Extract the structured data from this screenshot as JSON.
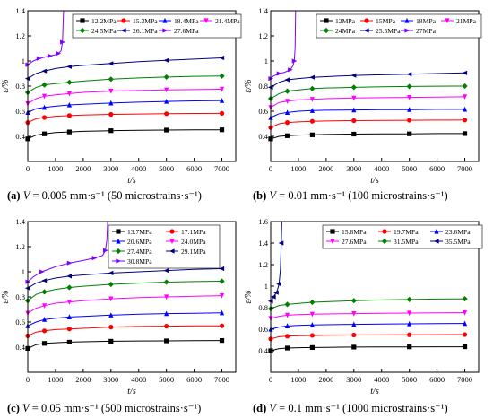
{
  "chart_data": [
    {
      "type": "line",
      "panel_label": "(a)",
      "caption": {
        "label": "(a)",
        "v": "V",
        "rest": " = 0.005 mm·s⁻¹ (50 microstrains·s⁻¹)"
      },
      "xlabel": "t/s",
      "ylabel": "ε/%",
      "xlim": [
        0,
        7500
      ],
      "ylim": [
        0.2,
        1.4
      ],
      "xticks": [
        0,
        1000,
        2000,
        3000,
        4000,
        5000,
        6000,
        7000
      ],
      "yticks": [
        0.4,
        0.6,
        0.8,
        1.0,
        1.2,
        1.4
      ],
      "grid": false,
      "legend": "top",
      "series": [
        {
          "name": "12.2MPa",
          "color": "#000000",
          "marker": "square",
          "x": [
            0,
            300,
            600,
            1000,
            1500,
            2000,
            3000,
            4000,
            5000,
            6000,
            7000
          ],
          "y": [
            0.38,
            0.41,
            0.42,
            0.43,
            0.435,
            0.44,
            0.445,
            0.448,
            0.45,
            0.452,
            0.452
          ]
        },
        {
          "name": "15.3MPa",
          "color": "#ff0000",
          "marker": "circle",
          "x": [
            0,
            300,
            600,
            1000,
            1500,
            2000,
            3000,
            4000,
            5000,
            6000,
            7000
          ],
          "y": [
            0.51,
            0.54,
            0.55,
            0.56,
            0.565,
            0.57,
            0.575,
            0.578,
            0.58,
            0.582,
            0.583
          ]
        },
        {
          "name": "18.4MPa",
          "color": "#0000ff",
          "marker": "triangle-up",
          "x": [
            0,
            300,
            600,
            1000,
            1500,
            2000,
            3000,
            4000,
            5000,
            6000,
            7000
          ],
          "y": [
            0.59,
            0.62,
            0.63,
            0.64,
            0.65,
            0.655,
            0.665,
            0.672,
            0.678,
            0.682,
            0.685
          ]
        },
        {
          "name": "21.4MPa",
          "color": "#ff00ff",
          "marker": "triangle-down",
          "x": [
            0,
            300,
            600,
            1000,
            1500,
            2000,
            3000,
            4000,
            5000,
            6000,
            7000
          ],
          "y": [
            0.66,
            0.7,
            0.72,
            0.73,
            0.74,
            0.75,
            0.76,
            0.765,
            0.77,
            0.772,
            0.775
          ]
        },
        {
          "name": "24.5MPa",
          "color": "#008000",
          "marker": "diamond",
          "x": [
            0,
            300,
            600,
            1000,
            1500,
            2000,
            3000,
            4000,
            5000,
            6000,
            7000
          ],
          "y": [
            0.75,
            0.79,
            0.81,
            0.82,
            0.83,
            0.84,
            0.855,
            0.865,
            0.872,
            0.878,
            0.88
          ]
        },
        {
          "name": "26.1MPa",
          "color": "#000080",
          "marker": "triangle-left",
          "x": [
            0,
            300,
            600,
            1000,
            1500,
            2000,
            3000,
            4000,
            5000,
            6000,
            7000
          ],
          "y": [
            0.86,
            0.9,
            0.92,
            0.94,
            0.955,
            0.965,
            0.98,
            0.995,
            1.005,
            1.015,
            1.025
          ]
        },
        {
          "name": "27.6MPa",
          "color": "#8000ff",
          "marker": "triangle-right",
          "x": [
            0,
            200,
            400,
            600,
            800,
            1000,
            1100,
            1200,
            1250,
            1290
          ],
          "y": [
            0.97,
            1.0,
            1.02,
            1.03,
            1.04,
            1.05,
            1.06,
            1.08,
            1.15,
            1.4
          ]
        }
      ]
    },
    {
      "type": "line",
      "panel_label": "(b)",
      "caption": {
        "label": "(b)",
        "v": "V",
        "rest": " = 0.01 mm·s⁻¹ (100 microstrains·s⁻¹)"
      },
      "xlabel": "t/s",
      "ylabel": "ε/%",
      "xlim": [
        0,
        7500
      ],
      "ylim": [
        0.2,
        1.4
      ],
      "xticks": [
        0,
        1000,
        2000,
        3000,
        4000,
        5000,
        6000,
        7000
      ],
      "yticks": [
        0.4,
        0.6,
        0.8,
        1.0,
        1.2,
        1.4
      ],
      "grid": false,
      "legend": "top",
      "series": [
        {
          "name": "12MPa",
          "color": "#000000",
          "marker": "square",
          "x": [
            0,
            300,
            600,
            1000,
            1500,
            2000,
            3000,
            4000,
            5000,
            6000,
            7000
          ],
          "y": [
            0.38,
            0.4,
            0.405,
            0.41,
            0.412,
            0.415,
            0.418,
            0.42,
            0.42,
            0.422,
            0.422
          ]
        },
        {
          "name": "15MPa",
          "color": "#ff0000",
          "marker": "circle",
          "x": [
            0,
            300,
            600,
            1000,
            1500,
            2000,
            3000,
            4000,
            5000,
            6000,
            7000
          ],
          "y": [
            0.47,
            0.5,
            0.51,
            0.515,
            0.52,
            0.522,
            0.525,
            0.527,
            0.528,
            0.529,
            0.53
          ]
        },
        {
          "name": "18MPa",
          "color": "#0000ff",
          "marker": "triangle-up",
          "x": [
            0,
            300,
            600,
            1000,
            1500,
            2000,
            3000,
            4000,
            5000,
            6000,
            7000
          ],
          "y": [
            0.55,
            0.58,
            0.59,
            0.6,
            0.605,
            0.608,
            0.61,
            0.612,
            0.613,
            0.615,
            0.615
          ]
        },
        {
          "name": "21MPa",
          "color": "#ff00ff",
          "marker": "triangle-down",
          "x": [
            0,
            300,
            600,
            1000,
            1500,
            2000,
            3000,
            4000,
            5000,
            6000,
            7000
          ],
          "y": [
            0.63,
            0.67,
            0.68,
            0.69,
            0.695,
            0.7,
            0.705,
            0.708,
            0.71,
            0.712,
            0.715
          ]
        },
        {
          "name": "24MPa",
          "color": "#008000",
          "marker": "diamond",
          "x": [
            0,
            300,
            600,
            1000,
            1500,
            2000,
            3000,
            4000,
            5000,
            6000,
            7000
          ],
          "y": [
            0.7,
            0.74,
            0.76,
            0.77,
            0.78,
            0.785,
            0.79,
            0.795,
            0.797,
            0.799,
            0.8
          ]
        },
        {
          "name": "25.5MPa",
          "color": "#000080",
          "marker": "triangle-left",
          "x": [
            0,
            300,
            600,
            1000,
            1500,
            2000,
            3000,
            4000,
            5000,
            6000,
            7000
          ],
          "y": [
            0.79,
            0.83,
            0.85,
            0.86,
            0.87,
            0.875,
            0.885,
            0.89,
            0.895,
            0.9,
            0.905
          ]
        },
        {
          "name": "27MPa",
          "color": "#8000ff",
          "marker": "triangle-right",
          "x": [
            0,
            100,
            300,
            500,
            700,
            800,
            850,
            880,
            900
          ],
          "y": [
            0.86,
            0.88,
            0.9,
            0.91,
            0.93,
            0.96,
            1.0,
            1.1,
            1.4
          ]
        }
      ]
    },
    {
      "type": "line",
      "panel_label": "(c)",
      "caption": {
        "label": "(c)",
        "v": "V",
        "rest": " = 0.05 mm·s⁻¹ (500 microstrains·s⁻¹)"
      },
      "xlabel": "t/s",
      "ylabel": "ε/%",
      "xlim": [
        0,
        7500
      ],
      "ylim": [
        0.2,
        1.4
      ],
      "xticks": [
        0,
        1000,
        2000,
        3000,
        4000,
        5000,
        6000,
        7000
      ],
      "yticks": [
        0.4,
        0.6,
        0.8,
        1.0,
        1.2,
        1.4
      ],
      "grid": false,
      "legend": "top",
      "series": [
        {
          "name": "13.7MPa",
          "color": "#000000",
          "marker": "square",
          "x": [
            0,
            300,
            600,
            1000,
            1500,
            2000,
            3000,
            4000,
            5000,
            6000,
            7000
          ],
          "y": [
            0.39,
            0.42,
            0.43,
            0.435,
            0.44,
            0.443,
            0.447,
            0.449,
            0.45,
            0.452,
            0.453
          ]
        },
        {
          "name": "17.1MPa",
          "color": "#ff0000",
          "marker": "circle",
          "x": [
            0,
            300,
            600,
            1000,
            1500,
            2000,
            3000,
            4000,
            5000,
            6000,
            7000
          ],
          "y": [
            0.49,
            0.52,
            0.53,
            0.54,
            0.545,
            0.55,
            0.56,
            0.565,
            0.567,
            0.569,
            0.57
          ]
        },
        {
          "name": "20.6MPa",
          "color": "#0000ff",
          "marker": "triangle-up",
          "x": [
            0,
            300,
            600,
            1000,
            1500,
            2000,
            3000,
            4000,
            5000,
            6000,
            7000
          ],
          "y": [
            0.57,
            0.6,
            0.62,
            0.63,
            0.64,
            0.645,
            0.655,
            0.662,
            0.667,
            0.67,
            0.673
          ]
        },
        {
          "name": "24.0MPa",
          "color": "#ff00ff",
          "marker": "triangle-down",
          "x": [
            0,
            300,
            600,
            1000,
            1500,
            2000,
            3000,
            4000,
            5000,
            6000,
            7000
          ],
          "y": [
            0.67,
            0.71,
            0.73,
            0.75,
            0.76,
            0.77,
            0.785,
            0.795,
            0.8,
            0.805,
            0.81
          ]
        },
        {
          "name": "27.4MPa",
          "color": "#008000",
          "marker": "diamond",
          "x": [
            0,
            300,
            600,
            1000,
            1500,
            2000,
            3000,
            4000,
            5000,
            6000,
            7000
          ],
          "y": [
            0.77,
            0.82,
            0.84,
            0.86,
            0.875,
            0.885,
            0.9,
            0.91,
            0.918,
            0.922,
            0.925
          ]
        },
        {
          "name": "29.1MPa",
          "color": "#000080",
          "marker": "triangle-left",
          "x": [
            0,
            300,
            600,
            1000,
            1500,
            2000,
            3000,
            4000,
            5000,
            6000,
            7000
          ],
          "y": [
            0.87,
            0.91,
            0.93,
            0.95,
            0.965,
            0.975,
            0.99,
            1.0,
            1.01,
            1.02,
            1.025
          ]
        },
        {
          "name": "30.8MPa",
          "color": "#8000ff",
          "marker": "triangle-right",
          "x": [
            0,
            200,
            500,
            1000,
            1500,
            2000,
            2400,
            2700,
            2800,
            2850,
            2880
          ],
          "y": [
            0.92,
            0.96,
            1.0,
            1.04,
            1.07,
            1.09,
            1.11,
            1.13,
            1.17,
            1.25,
            1.4
          ]
        }
      ]
    },
    {
      "type": "line",
      "panel_label": "(d)",
      "caption": {
        "label": "(d)",
        "v": "V",
        "rest": " = 0.1 mm·s⁻¹ (1000 microstrains·s⁻¹)"
      },
      "xlabel": "t/s",
      "ylabel": "ε/%",
      "xlim": [
        0,
        7500
      ],
      "ylim": [
        0.2,
        1.6
      ],
      "xticks": [
        0,
        1000,
        2000,
        3000,
        4000,
        5000,
        6000,
        7000
      ],
      "yticks": [
        0.4,
        0.6,
        0.8,
        1.0,
        1.2,
        1.4,
        1.6
      ],
      "grid": false,
      "legend": "top",
      "series": [
        {
          "name": "15.8MPa",
          "color": "#000000",
          "marker": "square",
          "x": [
            0,
            300,
            600,
            1000,
            1500,
            2000,
            3000,
            4000,
            5000,
            6000,
            7000
          ],
          "y": [
            0.4,
            0.42,
            0.425,
            0.428,
            0.43,
            0.432,
            0.434,
            0.435,
            0.436,
            0.437,
            0.437
          ]
        },
        {
          "name": "19.7MPa",
          "color": "#ff0000",
          "marker": "circle",
          "x": [
            0,
            300,
            600,
            1000,
            1500,
            2000,
            3000,
            4000,
            5000,
            6000,
            7000
          ],
          "y": [
            0.51,
            0.53,
            0.535,
            0.54,
            0.542,
            0.544,
            0.546,
            0.547,
            0.548,
            0.549,
            0.55
          ]
        },
        {
          "name": "23.6MPa",
          "color": "#0000ff",
          "marker": "triangle-up",
          "x": [
            0,
            300,
            600,
            1000,
            1500,
            2000,
            3000,
            4000,
            5000,
            6000,
            7000
          ],
          "y": [
            0.6,
            0.62,
            0.63,
            0.635,
            0.64,
            0.642,
            0.645,
            0.648,
            0.65,
            0.652,
            0.653
          ]
        },
        {
          "name": "27.6MPa",
          "color": "#ff00ff",
          "marker": "triangle-down",
          "x": [
            0,
            300,
            600,
            1000,
            1500,
            2000,
            3000,
            4000,
            5000,
            6000,
            7000
          ],
          "y": [
            0.7,
            0.72,
            0.73,
            0.735,
            0.74,
            0.742,
            0.745,
            0.748,
            0.75,
            0.752,
            0.753
          ]
        },
        {
          "name": "31.5MPa",
          "color": "#008000",
          "marker": "diamond",
          "x": [
            0,
            300,
            600,
            1000,
            1500,
            2000,
            3000,
            4000,
            5000,
            6000,
            7000
          ],
          "y": [
            0.79,
            0.82,
            0.83,
            0.84,
            0.85,
            0.855,
            0.865,
            0.872,
            0.876,
            0.88,
            0.882
          ]
        },
        {
          "name": "35.5MPa",
          "color": "#000080",
          "marker": "triangle-left",
          "x": [
            0,
            50,
            100,
            150,
            200,
            250,
            300,
            350,
            380,
            400
          ],
          "y": [
            0.86,
            0.88,
            0.9,
            0.92,
            0.94,
            0.97,
            1.02,
            1.15,
            1.4,
            1.6
          ]
        }
      ]
    }
  ]
}
